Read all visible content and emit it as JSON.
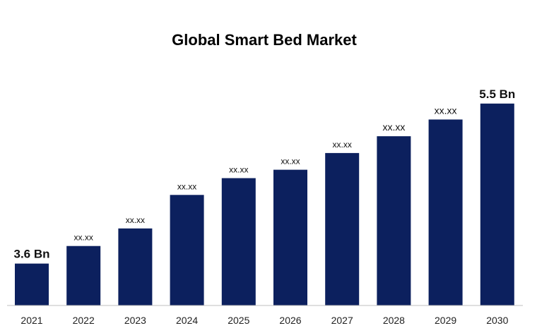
{
  "colors": {
    "bar": "#0c205e",
    "axis": "#bfbfbf",
    "background": "#ffffff"
  },
  "chart_data": {
    "type": "bar",
    "title": "Global Smart Bed Market",
    "xlabel": "",
    "ylabel": "",
    "categories": [
      "2021",
      "2022",
      "2023",
      "2024",
      "2025",
      "2026",
      "2027",
      "2028",
      "2029",
      "2030"
    ],
    "values": [
      3.6,
      3.81,
      4.02,
      4.42,
      4.62,
      4.72,
      4.92,
      5.12,
      5.32,
      5.51
    ],
    "data_labels": [
      "3.6 Bn",
      "xx.xx",
      "xx.xx",
      "xx.xx",
      "xx.xx",
      "xx.xx",
      "xx.xx",
      "xx.xx",
      "xx.xx",
      "5.5 Bn"
    ],
    "ylim": [
      3.1,
      5.82
    ],
    "grid": false,
    "legend": "none"
  }
}
